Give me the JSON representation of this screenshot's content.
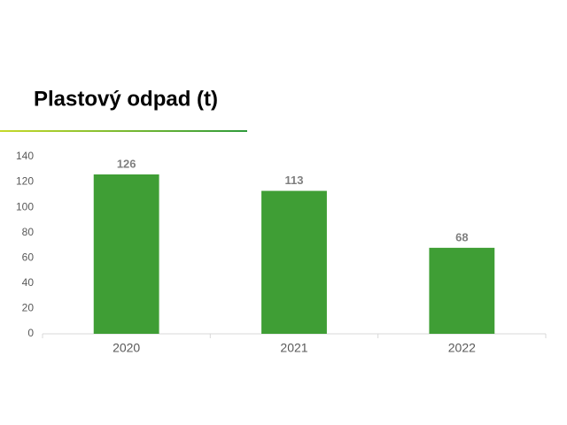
{
  "chart_data": {
    "type": "bar",
    "title": "Plastový odpad (t)",
    "categories": [
      "2020",
      "2021",
      "2022"
    ],
    "values": [
      126,
      113,
      68
    ],
    "color": "#3f9e35",
    "ylim": [
      0,
      140
    ],
    "yticks": [
      0,
      20,
      40,
      60,
      80,
      100,
      120,
      140
    ],
    "grid": false
  }
}
